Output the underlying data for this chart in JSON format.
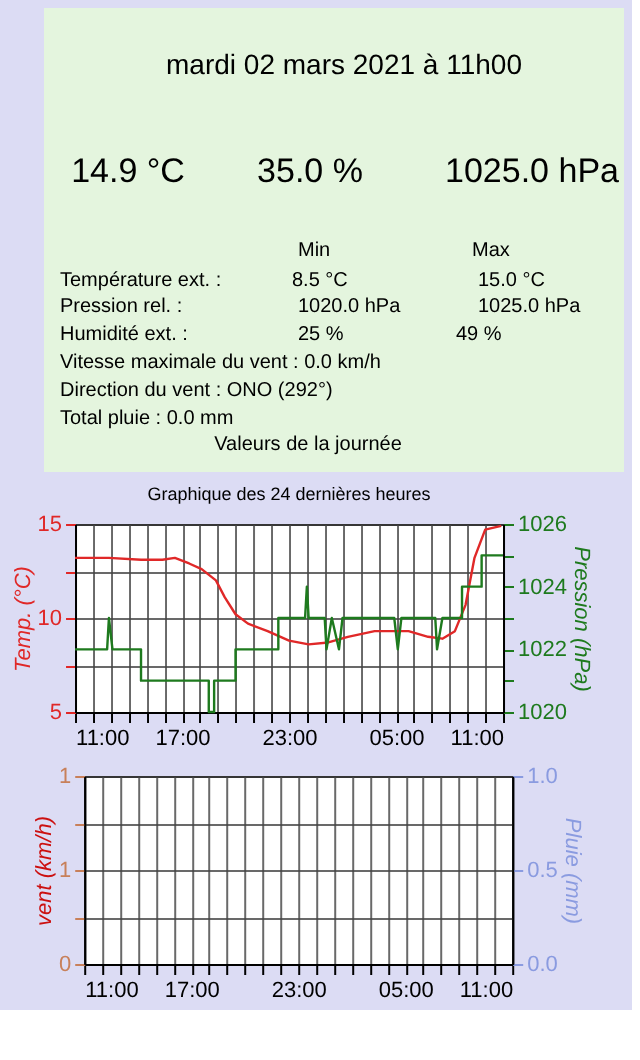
{
  "chart_data": [
    {
      "type": "other",
      "title": "mardi 02 mars 2021 à 11h00",
      "annotations": [
        "14.9 °C",
        "35.0 %",
        "1025.0 hPa",
        "Min",
        "Max",
        "Température ext. :",
        "8.5 °C",
        "15.0 °C",
        "Pression rel. :",
        "1020.0 hPa",
        "1025.0 hPa",
        "Humidité ext. :",
        "25 %",
        "49 %",
        "Vitesse maximale du vent : 0.0 km/h",
        "Direction du vent : ONO (292°)",
        "Total pluie : 0.0 mm",
        "Valeurs de la journée"
      ]
    },
    {
      "type": "line",
      "title": "Graphique des 24 dernières heures",
      "ylabel": "Temp. (°C)",
      "y2label": "Pression (hPa)",
      "grid": true,
      "xlim": [
        "2021-03-01T11:00",
        "2021-03-02T11:00"
      ],
      "xticks": [
        {
          "value": "2021-03-01T11:00",
          "label": "11:00"
        },
        {
          "value": "2021-03-01T12:00",
          "label": null
        },
        {
          "value": "2021-03-01T13:00",
          "label": null
        },
        {
          "value": "2021-03-01T14:00",
          "label": null
        },
        {
          "value": "2021-03-01T15:00",
          "label": null
        },
        {
          "value": "2021-03-01T16:00",
          "label": null
        },
        {
          "value": "2021-03-01T17:00",
          "label": "17:00"
        },
        {
          "value": "2021-03-01T18:00",
          "label": null
        },
        {
          "value": "2021-03-01T19:00",
          "label": null
        },
        {
          "value": "2021-03-01T20:00",
          "label": null
        },
        {
          "value": "2021-03-01T21:00",
          "label": null
        },
        {
          "value": "2021-03-01T22:00",
          "label": null
        },
        {
          "value": "2021-03-01T23:00",
          "label": "23:00"
        },
        {
          "value": "2021-03-02T00:00",
          "label": null
        },
        {
          "value": "2021-03-02T01:00",
          "label": null
        },
        {
          "value": "2021-03-02T02:00",
          "label": null
        },
        {
          "value": "2021-03-02T03:00",
          "label": null
        },
        {
          "value": "2021-03-02T04:00",
          "label": null
        },
        {
          "value": "2021-03-02T05:00",
          "label": "05:00"
        },
        {
          "value": "2021-03-02T06:00",
          "label": null
        },
        {
          "value": "2021-03-02T07:00",
          "label": null
        },
        {
          "value": "2021-03-02T08:00",
          "label": null
        },
        {
          "value": "2021-03-02T09:00",
          "label": null
        },
        {
          "value": "2021-03-02T10:00",
          "label": null
        },
        {
          "value": "2021-03-02T11:00",
          "label": "11:00"
        }
      ],
      "ylim": [
        5,
        15
      ],
      "yticks": [
        5,
        {
          "value": 7.5,
          "label": null
        },
        10,
        {
          "value": 12.5,
          "label": null
        },
        15
      ],
      "y2lim": [
        1020,
        1026
      ],
      "y2ticks": [
        1020,
        {
          "value": 1021,
          "label": null
        },
        1022,
        {
          "value": 1023,
          "label": null
        },
        1024,
        {
          "value": 1025,
          "label": null
        },
        1026
      ],
      "series": [
        {
          "color": "#e02828",
          "axis": "y",
          "x": [
            "2021-03-01T11:00",
            "2021-03-01T12:54",
            "2021-03-01T14:42",
            "2021-03-01T15:54",
            "2021-03-01T16:36",
            "2021-03-01T17:24",
            "2021-03-01T18:06",
            "2021-03-01T18:54",
            "2021-03-01T19:24",
            "2021-03-01T20:00",
            "2021-03-01T20:42",
            "2021-03-01T21:48",
            "2021-03-01T23:00",
            "2021-03-02T00:06",
            "2021-03-02T01:12",
            "2021-03-02T02:18",
            "2021-03-02T03:48",
            "2021-03-02T05:42",
            "2021-03-02T06:48",
            "2021-03-02T07:36",
            "2021-03-02T08:18",
            "2021-03-02T08:54",
            "2021-03-02T09:24",
            "2021-03-02T10:00",
            "2021-03-02T10:54"
          ],
          "values": [
            13.2,
            13.2,
            13.1,
            13.1,
            13.2,
            12.9,
            12.6,
            12,
            11.1,
            10.2,
            9.7,
            9.3,
            8.8,
            8.6,
            8.7,
            9,
            9.3,
            9.3,
            9,
            8.9,
            9.3,
            10.7,
            13.2,
            14.7,
            14.9
          ]
        },
        {
          "color": "#1e7a1e",
          "axis": "y2",
          "x": [
            "2021-03-01T11:00",
            "2021-03-01T12:48",
            "2021-03-01T12:54",
            "2021-03-01T13:06",
            "2021-03-01T14:42",
            "2021-03-01T14:42",
            "2021-03-01T18:30",
            "2021-03-01T18:30",
            "2021-03-01T18:48",
            "2021-03-01T18:48",
            "2021-03-01T20:00",
            "2021-03-01T20:00",
            "2021-03-01T22:24",
            "2021-03-01T22:24",
            "2021-03-01T23:54",
            "2021-03-02T00:00",
            "2021-03-02T00:06",
            "2021-03-02T01:00",
            "2021-03-02T01:06",
            "2021-03-02T01:24",
            "2021-03-02T01:48",
            "2021-03-02T02:00",
            "2021-03-02T04:54",
            "2021-03-02T05:06",
            "2021-03-02T05:18",
            "2021-03-02T07:12",
            "2021-03-02T07:18",
            "2021-03-02T07:36",
            "2021-03-02T08:42",
            "2021-03-02T08:42",
            "2021-03-02T09:48",
            "2021-03-02T09:48",
            "2021-03-02T11:00"
          ],
          "values": [
            1022,
            1022,
            1023,
            1022,
            1022,
            1021,
            1021,
            1020,
            1020,
            1021,
            1021,
            1022,
            1022,
            1023,
            1023,
            1024,
            1023,
            1023,
            1022,
            1023,
            1022,
            1023,
            1023,
            1022,
            1023,
            1023,
            1022,
            1023,
            1023,
            1024,
            1024,
            1025,
            1025
          ]
        }
      ]
    },
    {
      "type": "line",
      "ylabel": "vent (km/h)",
      "y2label": "Pluie (mm)",
      "grid": true,
      "xlim": [
        "2021-03-01T11:00",
        "2021-03-02T11:00"
      ],
      "xticks": [
        {
          "value": "2021-03-01T11:00",
          "label": "11:00"
        },
        {
          "value": "2021-03-01T12:00",
          "label": null
        },
        {
          "value": "2021-03-01T13:00",
          "label": null
        },
        {
          "value": "2021-03-01T14:00",
          "label": null
        },
        {
          "value": "2021-03-01T15:00",
          "label": null
        },
        {
          "value": "2021-03-01T16:00",
          "label": null
        },
        {
          "value": "2021-03-01T17:00",
          "label": "17:00"
        },
        {
          "value": "2021-03-01T18:00",
          "label": null
        },
        {
          "value": "2021-03-01T19:00",
          "label": null
        },
        {
          "value": "2021-03-01T20:00",
          "label": null
        },
        {
          "value": "2021-03-01T21:00",
          "label": null
        },
        {
          "value": "2021-03-01T22:00",
          "label": null
        },
        {
          "value": "2021-03-01T23:00",
          "label": "23:00"
        },
        {
          "value": "2021-03-02T00:00",
          "label": null
        },
        {
          "value": "2021-03-02T01:00",
          "label": null
        },
        {
          "value": "2021-03-02T02:00",
          "label": null
        },
        {
          "value": "2021-03-02T03:00",
          "label": null
        },
        {
          "value": "2021-03-02T04:00",
          "label": null
        },
        {
          "value": "2021-03-02T05:00",
          "label": "05:00"
        },
        {
          "value": "2021-03-02T06:00",
          "label": null
        },
        {
          "value": "2021-03-02T07:00",
          "label": null
        },
        {
          "value": "2021-03-02T08:00",
          "label": null
        },
        {
          "value": "2021-03-02T09:00",
          "label": null
        },
        {
          "value": "2021-03-02T10:00",
          "label": null
        },
        {
          "value": "2021-03-02T11:00",
          "label": "11:00"
        }
      ],
      "ylim": [
        0,
        1
      ],
      "yticks": [
        {
          "value": 0,
          "label": "0"
        },
        {
          "value": 0.25,
          "label": null
        },
        {
          "value": 0.5,
          "label": "1"
        },
        {
          "value": 0.75,
          "label": null
        },
        {
          "value": 1,
          "label": "1"
        }
      ],
      "y2lim": [
        0,
        1
      ],
      "y2ticks": [
        {
          "value": 0,
          "label": "0.0"
        },
        {
          "value": 0.5,
          "label": "0.5"
        },
        {
          "value": 1,
          "label": "1.0"
        }
      ]
    }
  ]
}
